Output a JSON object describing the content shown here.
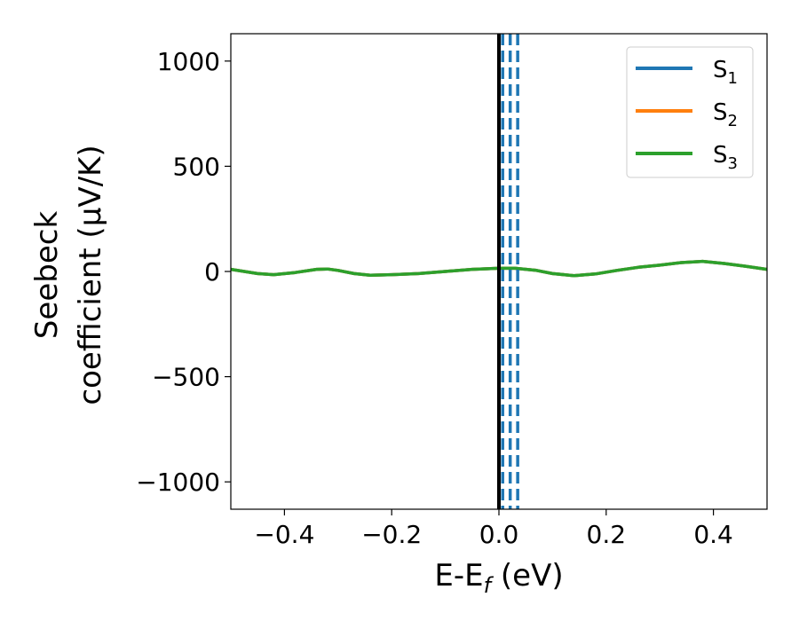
{
  "chart_data": {
    "type": "line",
    "xlabel": "E-E",
    "xlabel_sub": "f",
    "xlabel_unit": " (eV)",
    "ylabel_line1": "Seebeck",
    "ylabel_line2": "coefficient  (μV/K)",
    "xlim": [
      -0.5,
      0.5
    ],
    "ylim": [
      -1130,
      1130
    ],
    "xticks": [
      -0.4,
      -0.2,
      0.0,
      0.2,
      0.4
    ],
    "xtick_labels": [
      "−0.4",
      "−0.2",
      "0.0",
      "0.2",
      "0.4"
    ],
    "yticks": [
      -1000,
      -500,
      0,
      500,
      1000
    ],
    "ytick_labels": [
      "−1000",
      "−500",
      "0",
      "500",
      "1000"
    ],
    "grid": false,
    "legend_position": "top-right",
    "x": [
      -0.5,
      -0.45,
      -0.42,
      -0.38,
      -0.34,
      -0.32,
      -0.3,
      -0.27,
      -0.24,
      -0.2,
      -0.15,
      -0.1,
      -0.05,
      0.0,
      0.03,
      0.07,
      0.1,
      0.14,
      0.18,
      0.22,
      0.26,
      0.3,
      0.34,
      0.38,
      0.42,
      0.46,
      0.5
    ],
    "series": [
      {
        "name": "S",
        "sub": "1",
        "color": "#1f77b4",
        "y": [
          10,
          -10,
          -15,
          -5,
          10,
          12,
          5,
          -10,
          -18,
          -15,
          -10,
          0,
          10,
          15,
          15,
          5,
          -10,
          -20,
          -12,
          5,
          20,
          30,
          42,
          48,
          38,
          25,
          10
        ]
      },
      {
        "name": "S",
        "sub": "2",
        "color": "#ff7f0e",
        "y": [
          10,
          -10,
          -15,
          -5,
          10,
          12,
          5,
          -10,
          -18,
          -15,
          -10,
          0,
          10,
          15,
          15,
          5,
          -10,
          -20,
          -12,
          5,
          20,
          30,
          42,
          48,
          38,
          25,
          10
        ]
      },
      {
        "name": "S",
        "sub": "3",
        "color": "#2ca02c",
        "y": [
          10,
          -10,
          -15,
          -5,
          10,
          12,
          5,
          -10,
          -18,
          -15,
          -10,
          0,
          10,
          15,
          15,
          5,
          -10,
          -20,
          -12,
          5,
          20,
          30,
          42,
          48,
          38,
          25,
          10
        ]
      }
    ],
    "vlines": [
      {
        "x": 0.0,
        "color": "#000000",
        "style": "solid"
      },
      {
        "x": 0.007,
        "color": "#1f77b4",
        "style": "dashed"
      },
      {
        "x": 0.021,
        "color": "#1f77b4",
        "style": "dashed"
      },
      {
        "x": 0.035,
        "color": "#1f77b4",
        "style": "dashed"
      }
    ]
  }
}
